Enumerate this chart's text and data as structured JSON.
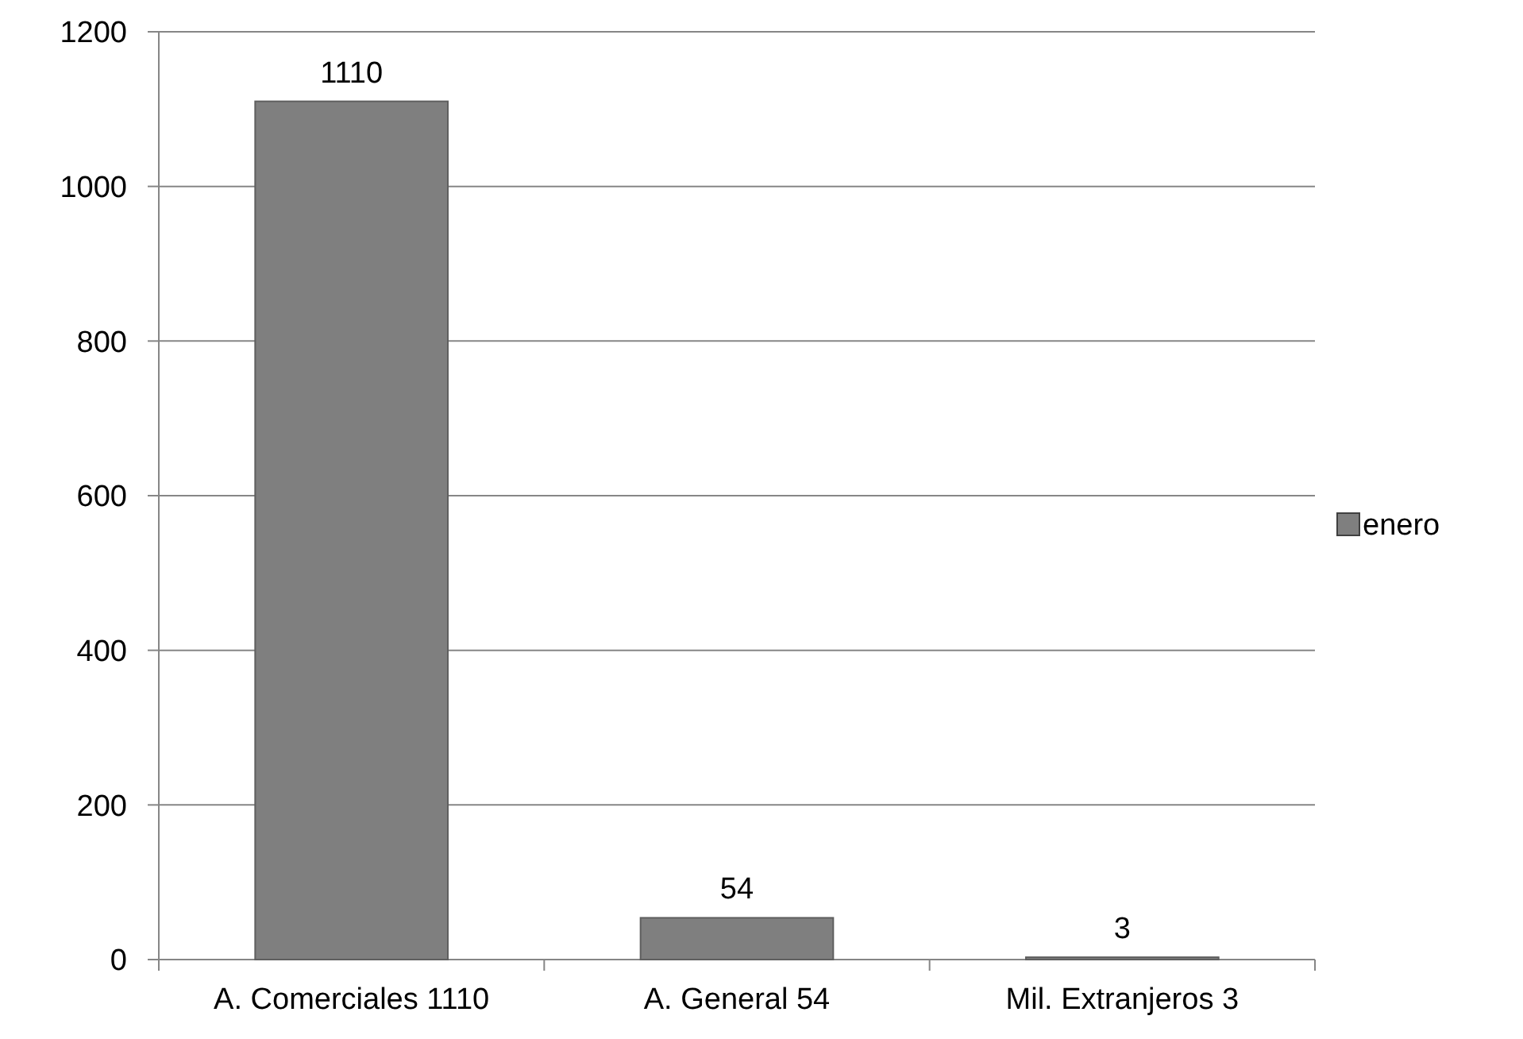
{
  "chart_data": {
    "type": "bar",
    "categories": [
      "A. Comerciales 1110",
      "A. General 54",
      "Mil. Extranjeros 3"
    ],
    "series": [
      {
        "name": "enero",
        "color": "#7f7f7f",
        "values": [
          1110,
          54,
          3
        ]
      }
    ],
    "ylim": [
      0,
      1200
    ],
    "yticks": [
      0,
      200,
      400,
      600,
      800,
      1000,
      1200
    ],
    "grid": "y",
    "legend": "right",
    "data_labels": true
  }
}
